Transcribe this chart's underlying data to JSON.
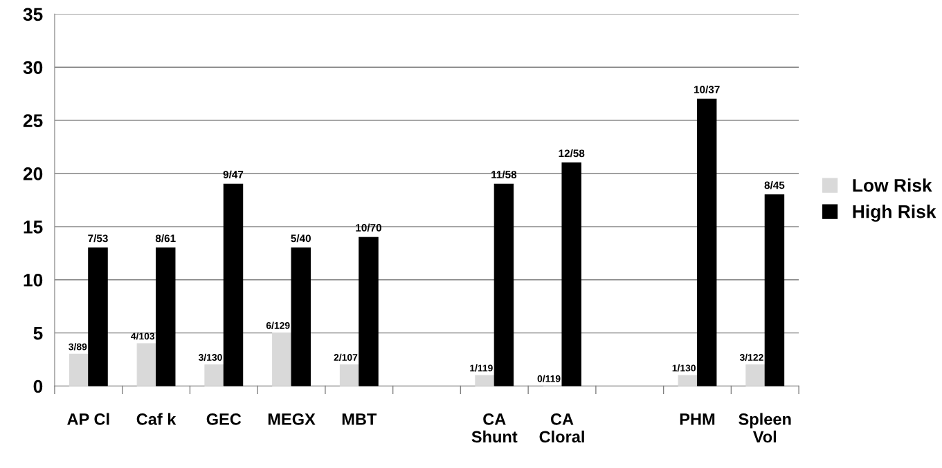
{
  "chart_data": {
    "type": "bar",
    "categories": [
      "AP Cl",
      "Caf k",
      "GEC",
      "MEGX",
      "MBT",
      null,
      "CA\nShunt",
      "CA\nCloral",
      null,
      "PHM",
      "Spleen\nVol"
    ],
    "series": [
      {
        "name": "Low Risk",
        "color": "#d9d9d9",
        "values": [
          3,
          4,
          2,
          5,
          2,
          null,
          1,
          0,
          null,
          1,
          2
        ],
        "value_labels": [
          "3/89",
          "4/103",
          "3/130",
          "6/129",
          "2/107",
          null,
          "1/119",
          "0/119",
          null,
          "1/130",
          "3/122"
        ]
      },
      {
        "name": "High Risk",
        "color": "#000000",
        "values": [
          13,
          13,
          19,
          13,
          14,
          null,
          19,
          21,
          null,
          27,
          18
        ],
        "value_labels": [
          "7/53",
          "8/61",
          "9/47",
          "5/40",
          "10/70",
          null,
          "11/58",
          "12/58",
          null,
          "10/37",
          "8/45"
        ]
      }
    ],
    "ylim": [
      0,
      35
    ],
    "yticks": [
      0,
      5,
      10,
      15,
      20,
      25,
      30,
      35
    ],
    "grid": "y",
    "legend": "right"
  }
}
